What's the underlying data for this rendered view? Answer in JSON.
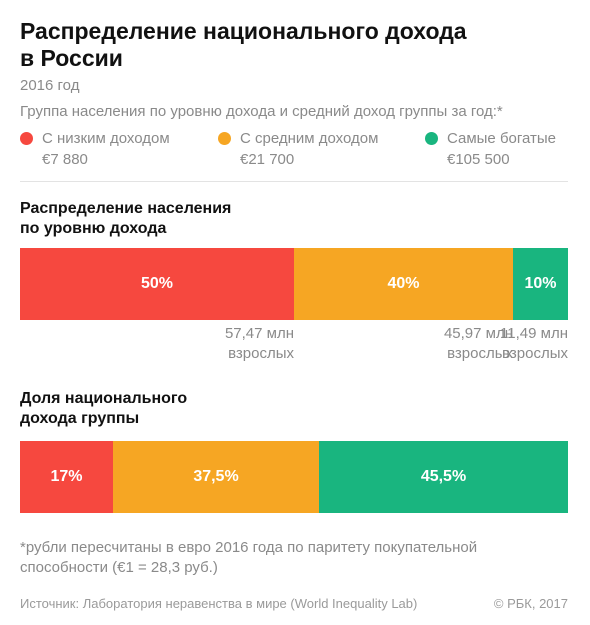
{
  "header": {
    "title_line1": "Распределение национального дохода",
    "title_line2": "в России",
    "year": "2016 год",
    "legend_title": "Группа населения по уровню дохода и средний доход группы за год:*"
  },
  "colors": {
    "low": "#f6483f",
    "middle": "#f6a623",
    "rich": "#19b57f"
  },
  "legend": [
    {
      "name": "С низким доходом",
      "value": "€7 880"
    },
    {
      "name": "С средним доходом",
      "value": "€21 700"
    },
    {
      "name": "Самые богатые",
      "value": "€105 500"
    }
  ],
  "chart_data": [
    {
      "type": "bar",
      "title_line1": "Распределение населения",
      "title_line2": "по уровню дохода",
      "categories": [
        "С низким доходом",
        "С средним доходом",
        "Самые богатые"
      ],
      "values": [
        50,
        40,
        10
      ],
      "labels": [
        "50%",
        "40%",
        "10%"
      ],
      "counts": [
        {
          "line1": "57,47 млн",
          "line2": "взрослых"
        },
        {
          "line1": "45,97 млн",
          "line2": "взрослых"
        },
        {
          "line1": "11,49 млн",
          "line2": "взрослых"
        }
      ]
    },
    {
      "type": "bar",
      "title_line1": "Доля национального",
      "title_line2": "дохода группы",
      "categories": [
        "С низким доходом",
        "С средним доходом",
        "Самые богатые"
      ],
      "values": [
        17,
        37.5,
        45.5
      ],
      "labels": [
        "17%",
        "37,5%",
        "45,5%"
      ]
    }
  ],
  "footnote": {
    "line1": "*рубли пересчитаны в евро 2016 года по паритету покупательной",
    "line2": "способности (€1 = 28,3 руб.)"
  },
  "footer": {
    "source": "Источник: Лаборатория неравенства в мире (World Inequality Lab)",
    "copyright": "© РБК, 2017"
  }
}
